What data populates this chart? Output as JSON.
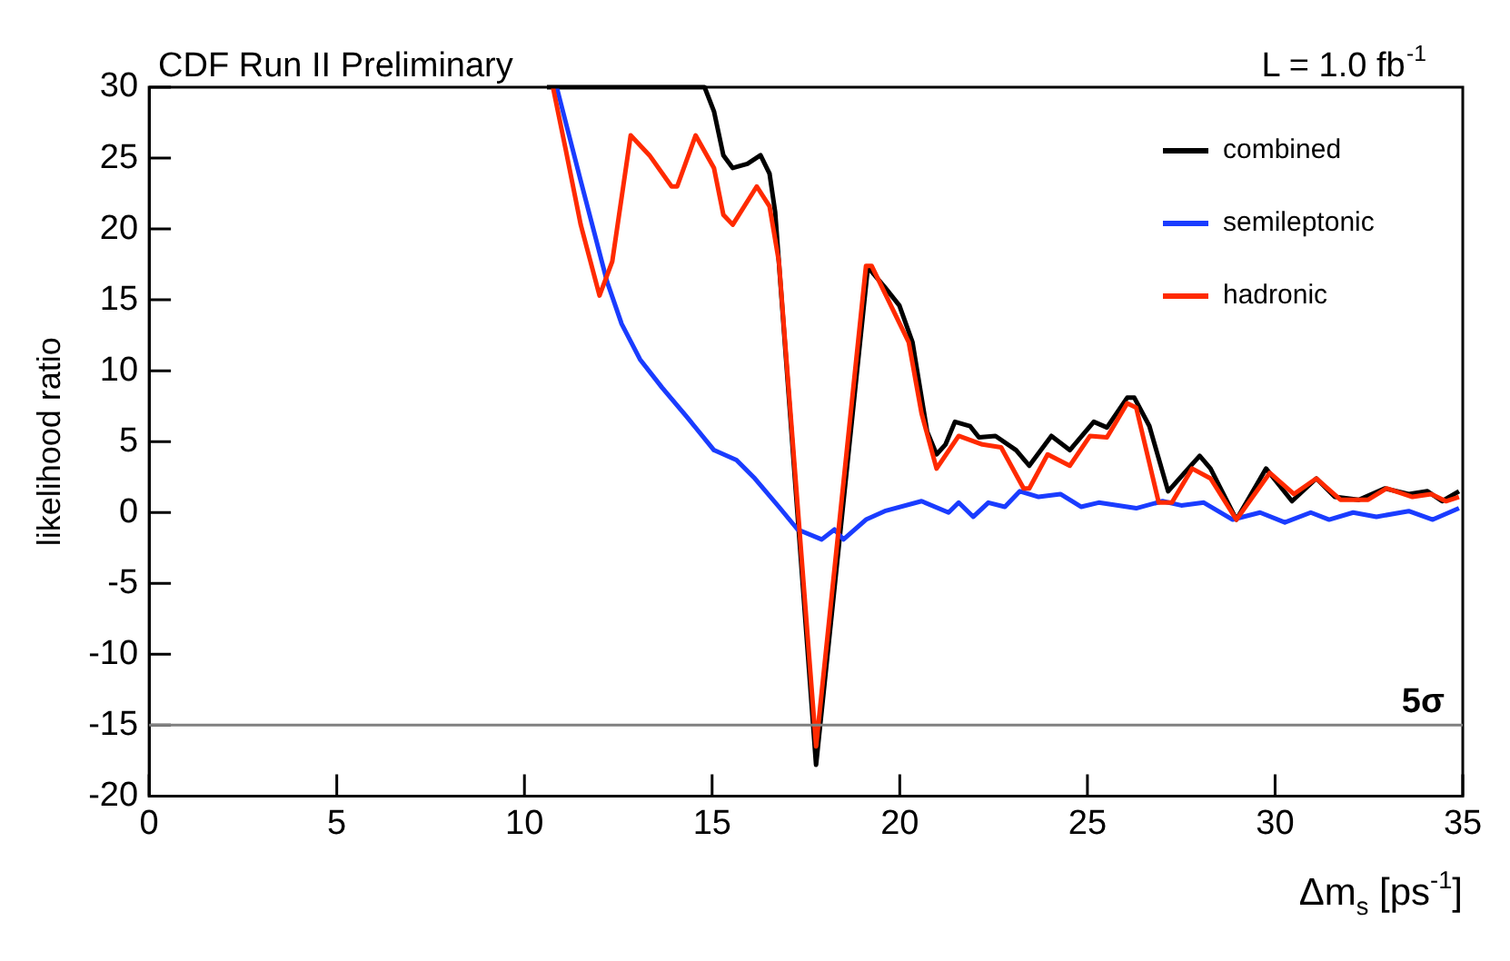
{
  "chart_data": {
    "type": "line",
    "title": "CDF Run II Preliminary",
    "annotations": [
      "L = 1.0 fb$^{-1}$"
    ],
    "xlabel": "Δm$_{s}$ [ps$^{-1}$]",
    "ylabel": "likelihood ratio",
    "xlim": [
      0,
      35
    ],
    "xticks": [
      0,
      5,
      10,
      15,
      20,
      25,
      30,
      35
    ],
    "ylim": [
      -20,
      30
    ],
    "yticks": [
      -20,
      -15,
      -10,
      -5,
      0,
      5,
      10,
      15,
      20,
      25,
      30
    ],
    "grid": false,
    "legend": "top right",
    "marker": "none",
    "line_style": "solid",
    "ref_lines": [
      {
        "axis": "y",
        "value": -15,
        "label": "5σ",
        "color": "#808080"
      }
    ],
    "series": [
      {
        "name": "combined",
        "color": "#000000",
        "x": [
          10.6,
          14.8,
          15.05,
          15.3,
          15.55,
          15.94,
          16.29,
          16.53,
          16.68,
          17.77,
          19.15,
          19.6,
          19.99,
          20.34,
          20.73,
          20.98,
          21.22,
          21.47,
          21.87,
          22.11,
          22.55,
          23.1,
          23.45,
          24.04,
          24.53,
          25.17,
          25.52,
          26.06,
          26.25,
          26.65,
          27.15,
          27.99,
          28.28,
          28.97,
          29.76,
          30.45,
          31.1,
          31.59,
          32.23,
          32.92,
          33.56,
          34.06,
          34.45,
          34.9
        ],
        "values": [
          30,
          30,
          28.3,
          25.2,
          24.3,
          24.6,
          25.2,
          23.9,
          21.2,
          -17.8,
          17.3,
          15.9,
          14.6,
          12,
          5.7,
          4.1,
          4.8,
          6.4,
          6.1,
          5.3,
          5.4,
          4.4,
          3.3,
          5.4,
          4.4,
          6.4,
          6,
          8.1,
          8.1,
          6.1,
          1.5,
          4,
          3.1,
          -0.5,
          3.1,
          0.8,
          2.4,
          1.1,
          0.9,
          1.7,
          1.3,
          1.5,
          0.8,
          1.5
        ]
      },
      {
        "name": "semileptonic",
        "color": "#1a3cff",
        "x": [
          10.86,
          11.5,
          12.2,
          12.59,
          13.08,
          13.67,
          14.31,
          15.05,
          15.65,
          16.14,
          16.78,
          17.28,
          17.92,
          18.26,
          18.5,
          19.1,
          19.6,
          20.58,
          21.3,
          21.57,
          21.96,
          22.36,
          22.8,
          23.2,
          23.7,
          24.28,
          24.83,
          25.3,
          26.3,
          27.0,
          27.5,
          28.1,
          28.87,
          29.6,
          30.26,
          30.95,
          31.44,
          32.08,
          32.7,
          33.56,
          34.2,
          34.9
        ],
        "values": [
          30,
          23.4,
          16.3,
          13.3,
          10.8,
          8.8,
          6.8,
          4.4,
          3.7,
          2.4,
          0.4,
          -1.2,
          -1.9,
          -1.2,
          -1.9,
          -0.5,
          0.1,
          0.8,
          0,
          0.7,
          -0.3,
          0.7,
          0.4,
          1.5,
          1.1,
          1.3,
          0.4,
          0.7,
          0.3,
          0.8,
          0.5,
          0.7,
          -0.5,
          0,
          -0.7,
          0,
          -0.5,
          0,
          -0.3,
          0.1,
          -0.5,
          0.3
        ]
      },
      {
        "name": "hadronic",
        "color": "#ff2a00",
        "x": [
          10.76,
          11.1,
          11.5,
          12.0,
          12.34,
          12.83,
          13.33,
          13.92,
          14.07,
          14.56,
          15.05,
          15.3,
          15.55,
          16.19,
          16.53,
          16.78,
          17.77,
          19.1,
          19.25,
          20.24,
          20.58,
          20.98,
          21.57,
          22.2,
          22.7,
          23.3,
          23.45,
          23.94,
          24.53,
          25.07,
          25.52,
          26.06,
          26.3,
          26.9,
          27.25,
          27.79,
          28.28,
          28.97,
          29.86,
          30.5,
          31.1,
          31.74,
          32.48,
          32.97,
          33.66,
          34.16,
          34.55,
          34.9
        ],
        "values": [
          30,
          25.6,
          20.3,
          15.3,
          17.7,
          26.6,
          25.2,
          23,
          23,
          26.6,
          24.3,
          21,
          20.3,
          23,
          21.6,
          17.7,
          -16.5,
          17.4,
          17.4,
          12,
          7,
          3.1,
          5.4,
          4.8,
          4.6,
          1.7,
          1.7,
          4.1,
          3.3,
          5.4,
          5.3,
          7.7,
          7.4,
          0.7,
          0.7,
          3.1,
          2.4,
          -0.5,
          2.8,
          1.3,
          2.4,
          0.9,
          0.9,
          1.7,
          1.1,
          1.3,
          0.8,
          1.1
        ]
      }
    ]
  }
}
